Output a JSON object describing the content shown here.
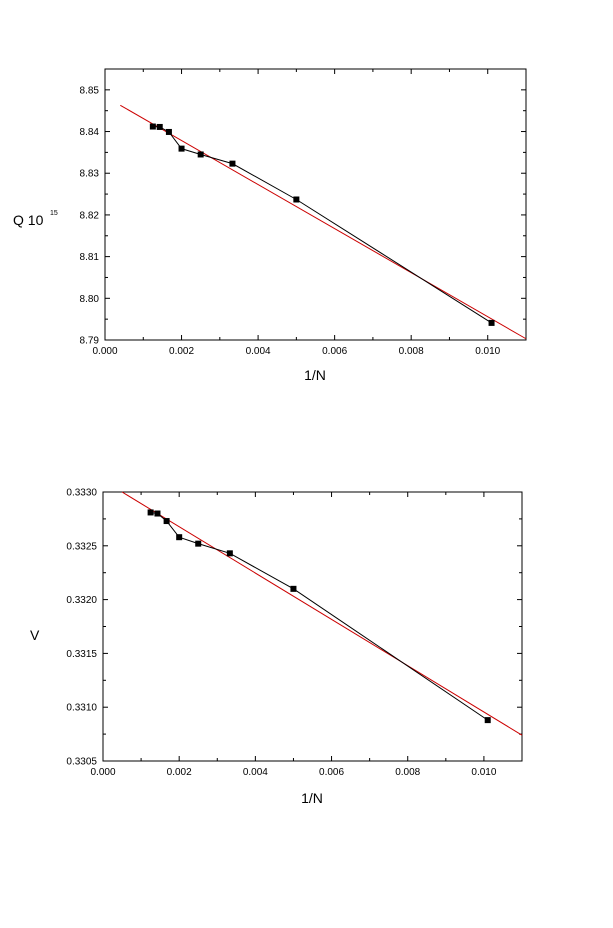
{
  "chart_data": [
    {
      "type": "line",
      "title": "",
      "xlabel": "1/N",
      "ylabel": "Q 10",
      "ylabel_sup": "15",
      "xlim": [
        0.0,
        0.011
      ],
      "ylim": [
        8.79,
        8.855
      ],
      "xticks": [
        0.0,
        0.002,
        0.004,
        0.006,
        0.008,
        0.01
      ],
      "xtick_labels": [
        "0.000",
        "0.002",
        "0.004",
        "0.006",
        "0.008",
        "0.010"
      ],
      "yticks": [
        8.79,
        8.8,
        8.81,
        8.82,
        8.83,
        8.84,
        8.85
      ],
      "ytick_labels": [
        "8.79",
        "8.80",
        "8.81",
        "8.82",
        "8.83",
        "8.84",
        "8.85"
      ],
      "grid": false,
      "series": [
        {
          "kind": "data-markers-line",
          "color": "#000000",
          "x": [
            0.00125,
            0.00143,
            0.00167,
            0.002,
            0.0025,
            0.00333,
            0.005,
            0.0101
          ],
          "y": [
            8.8412,
            8.8411,
            8.8399,
            8.8359,
            8.8345,
            8.8323,
            8.8237,
            8.7941
          ]
        },
        {
          "kind": "fit-line",
          "color": "#cc0000",
          "x": [
            0.0004,
            0.011
          ],
          "y": [
            8.8463,
            8.7903
          ]
        }
      ]
    },
    {
      "type": "line",
      "title": "",
      "xlabel": "1/N",
      "ylabel": "V",
      "xlim": [
        0.0,
        0.011
      ],
      "ylim": [
        0.3305,
        0.333
      ],
      "xticks": [
        0.0,
        0.002,
        0.004,
        0.006,
        0.008,
        0.01
      ],
      "xtick_labels": [
        "0.000",
        "0.002",
        "0.004",
        "0.006",
        "0.008",
        "0.010"
      ],
      "yticks": [
        0.3305,
        0.331,
        0.3315,
        0.332,
        0.3325,
        0.333
      ],
      "ytick_labels": [
        "0.3305",
        "0.3310",
        "0.3315",
        "0.3320",
        "0.3325",
        "0.3330"
      ],
      "grid": false,
      "series": [
        {
          "kind": "data-markers-line",
          "color": "#000000",
          "x": [
            0.00125,
            0.00143,
            0.00167,
            0.002,
            0.0025,
            0.00333,
            0.005,
            0.0101
          ],
          "y": [
            0.33281,
            0.3328,
            0.33273,
            0.33258,
            0.33252,
            0.33243,
            0.3321,
            0.33088
          ]
        },
        {
          "kind": "fit-line",
          "color": "#cc0000",
          "x": [
            0.0005,
            0.011
          ],
          "y": [
            0.333,
            0.33074
          ]
        }
      ]
    }
  ]
}
